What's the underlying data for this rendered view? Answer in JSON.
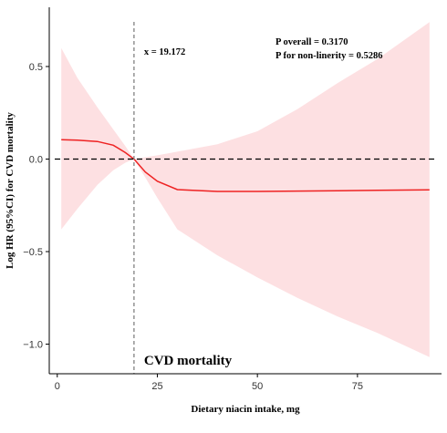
{
  "chart_data": {
    "type": "line",
    "title": "CVD mortality",
    "xlabel": "Dietary niacin intake, mg",
    "ylabel": "Log HR (95%CI) for CVD mortality",
    "xlim": [
      -2,
      96
    ],
    "ylim": [
      -1.16,
      0.82
    ],
    "x_ticks": [
      0,
      25,
      50,
      75
    ],
    "y_ticks": [
      -1.0,
      -0.5,
      0.0,
      0.5
    ],
    "x_tick_labels": [
      "0",
      "25",
      "50",
      "75"
    ],
    "y_tick_labels": [
      "−1.0",
      "−0.5",
      "0.0",
      "0.5"
    ],
    "reference_line": {
      "y": 0.0,
      "style": "dashed"
    },
    "vertical_line": {
      "x": 19.172,
      "label": "x = 19.172",
      "style": "dashed"
    },
    "annotations": [
      "P overall = 0.3170",
      "P for non-linerity = 0.5286"
    ],
    "grid": false,
    "series": [
      {
        "color": "#ee2222",
        "band_color": "#fde0e2",
        "x": [
          1,
          5,
          10,
          14,
          17,
          19.172,
          22,
          25,
          30,
          40,
          50,
          60,
          70,
          80,
          93
        ],
        "y": [
          0.105,
          0.102,
          0.095,
          0.075,
          0.035,
          0.0,
          -0.07,
          -0.12,
          -0.165,
          -0.175,
          -0.175,
          -0.173,
          -0.171,
          -0.169,
          -0.166
        ],
        "lower": [
          -0.38,
          -0.27,
          -0.14,
          -0.06,
          -0.02,
          0.0,
          -0.1,
          -0.21,
          -0.38,
          -0.52,
          -0.64,
          -0.75,
          -0.85,
          -0.94,
          -1.07
        ],
        "upper": [
          0.6,
          0.44,
          0.28,
          0.16,
          0.07,
          0.0,
          0.01,
          0.02,
          0.04,
          0.08,
          0.15,
          0.27,
          0.41,
          0.54,
          0.74
        ]
      }
    ]
  }
}
